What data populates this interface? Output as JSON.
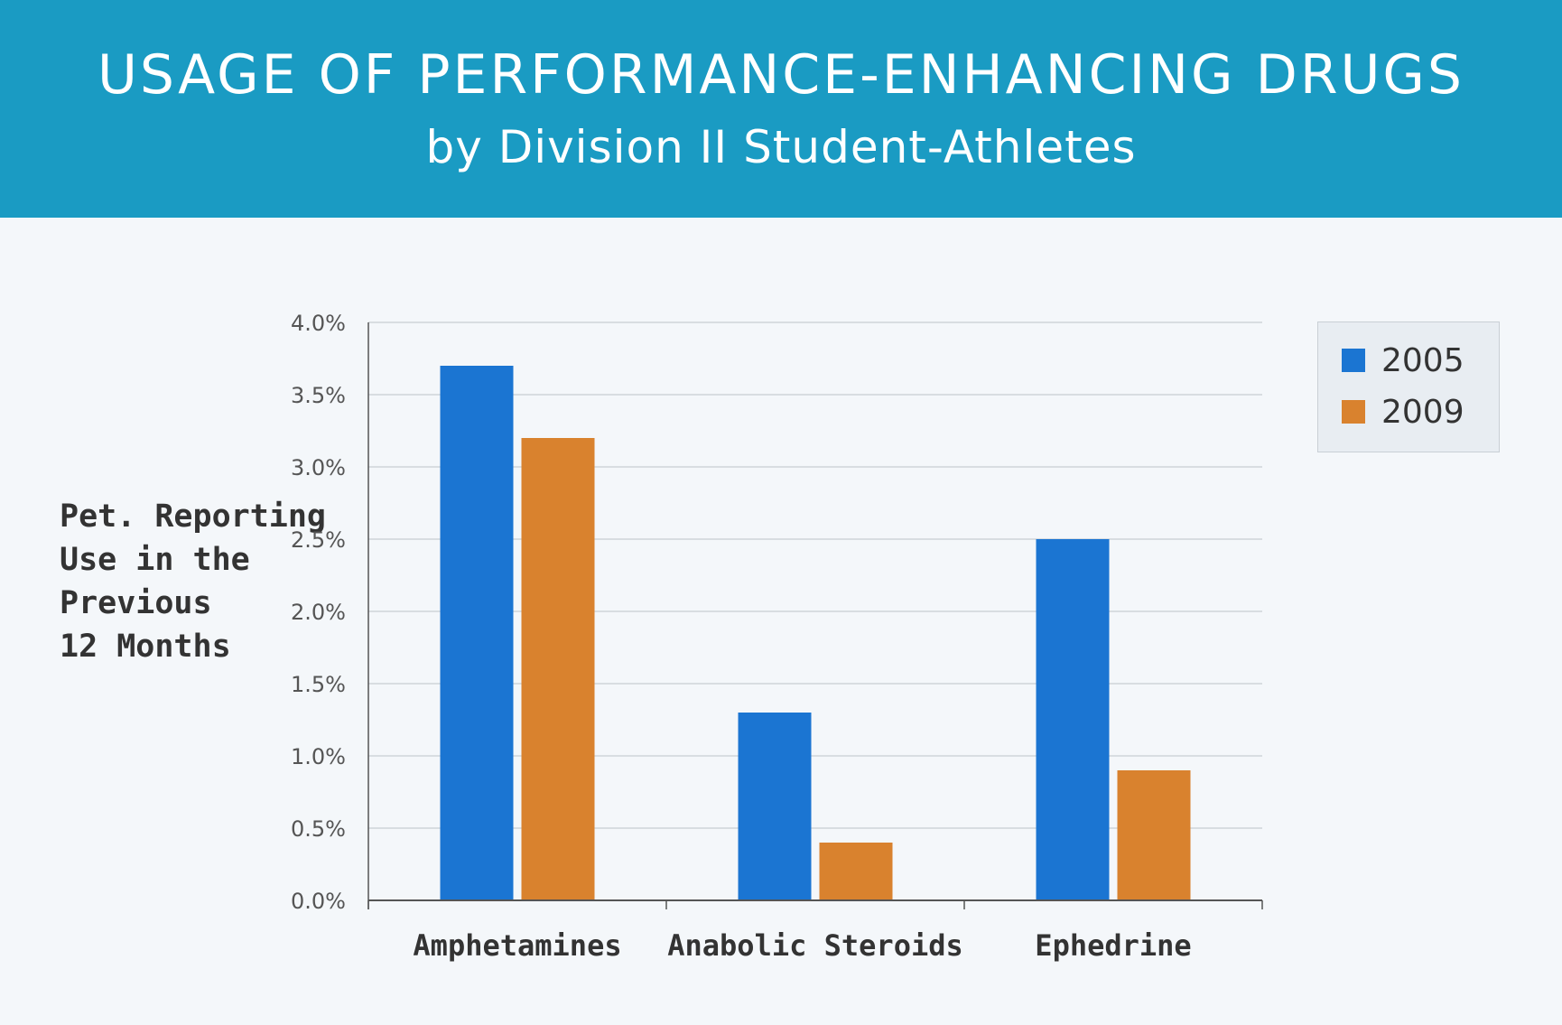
{
  "header": {
    "title": "USAGE OF PERFORMANCE-ENHANCING DRUGS",
    "subtitle": "by Division II Student-Athletes"
  },
  "chart_data": {
    "type": "bar",
    "title": "USAGE OF PERFORMANCE-ENHANCING DRUGS",
    "subtitle": "by Division II Student-Athletes",
    "xlabel": "",
    "ylabel": "Pet. Reporting Use in the Previous 12 Months",
    "ylabel_lines": [
      "Pet. Reporting",
      "Use in the",
      "Previous",
      "12 Months"
    ],
    "categories": [
      "Amphetamines",
      "Anabolic Steroids",
      "Ephedrine"
    ],
    "series": [
      {
        "name": "2005",
        "color": "#1b75d2",
        "values": [
          3.7,
          1.3,
          2.5
        ]
      },
      {
        "name": "2009",
        "color": "#d9822e",
        "values": [
          3.2,
          0.4,
          0.9
        ]
      }
    ],
    "ylim": [
      0,
      4.0
    ],
    "yticks": [
      "0.0%",
      "0.5%",
      "1.0%",
      "1.5%",
      "2.0%",
      "2.5%",
      "3.0%",
      "3.5%",
      "4.0%"
    ],
    "ytick_values": [
      0,
      0.5,
      1.0,
      1.5,
      2.0,
      2.5,
      3.0,
      3.5,
      4.0
    ],
    "grid": true,
    "legend_position": "top-right"
  }
}
